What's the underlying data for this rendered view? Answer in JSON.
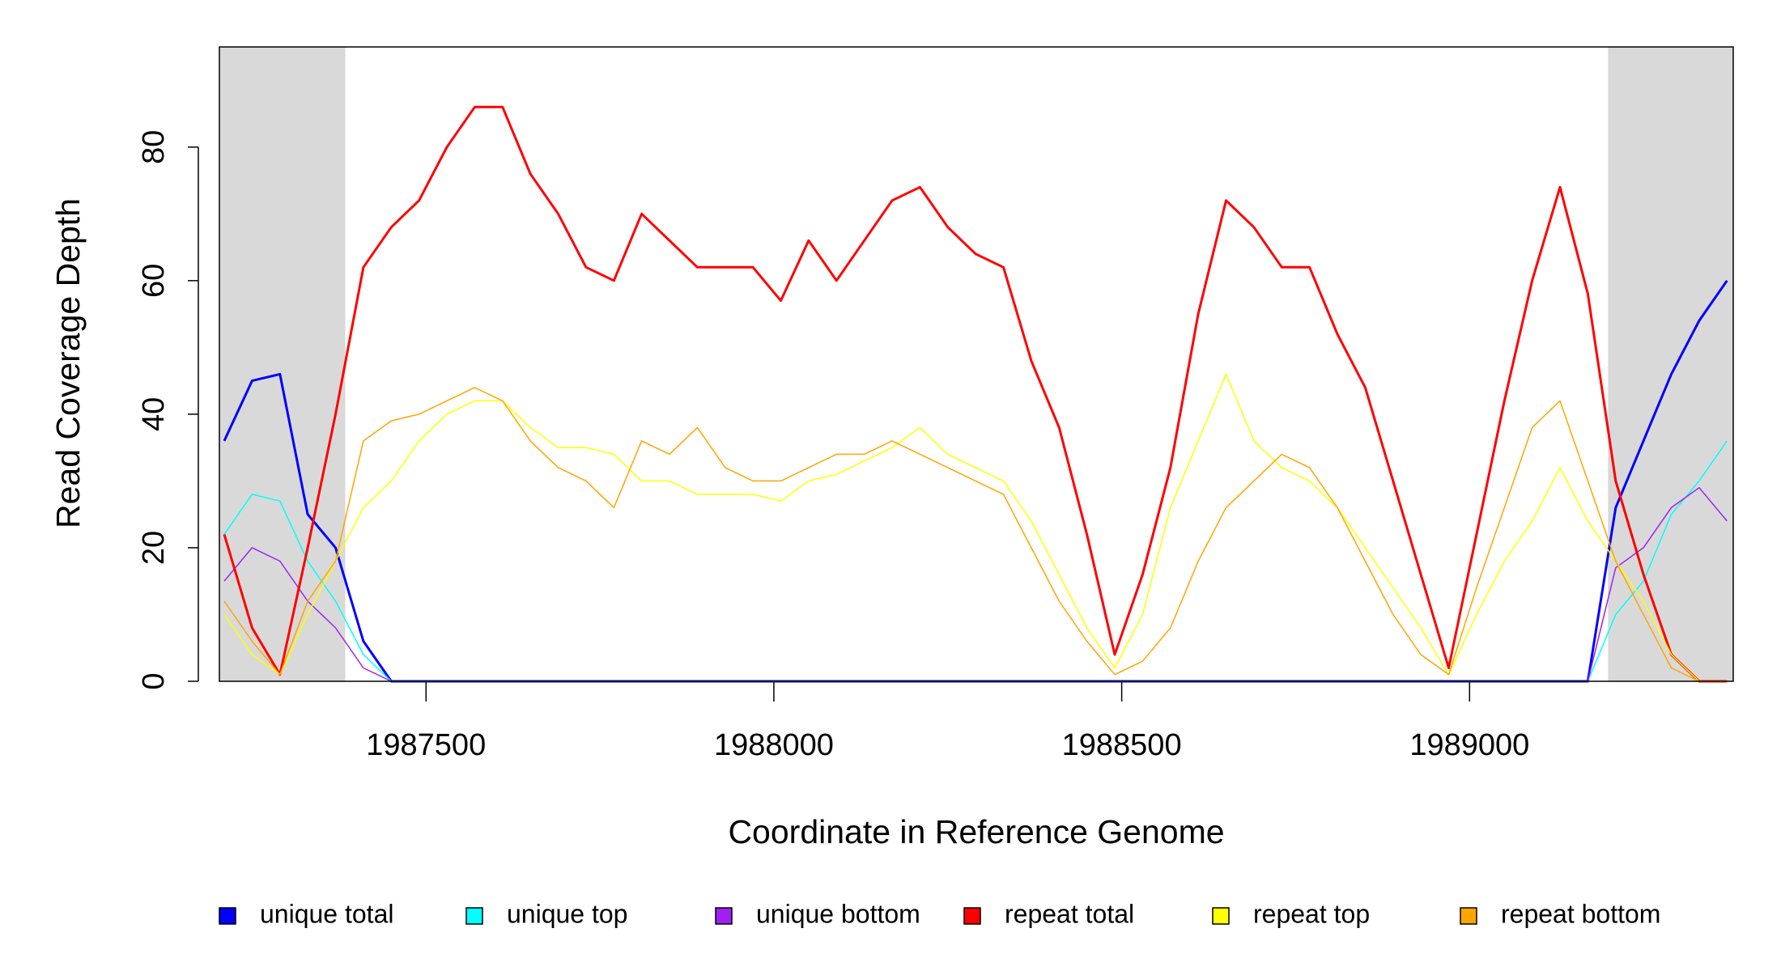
{
  "chart_data": {
    "type": "line",
    "x_label": "Coordinate in Reference Genome",
    "y_label": "Read Coverage Depth",
    "xlim": [
      1987203,
      1989379
    ],
    "ylim": [
      0,
      95
    ],
    "xticks": [
      1987500,
      1988000,
      1988500,
      1989000
    ],
    "yticks": [
      0,
      20,
      40,
      60,
      80
    ],
    "shaded_regions": [
      [
        1987203,
        1987384
      ],
      [
        1989199,
        1989379
      ]
    ],
    "shade_color": "#d9d9d9",
    "legend_position": "bottom",
    "x": [
      1987210,
      1987250,
      1987290,
      1987330,
      1987370,
      1987410,
      1987450,
      1987490,
      1987530,
      1987570,
      1987610,
      1987650,
      1987690,
      1987730,
      1987770,
      1987810,
      1987850,
      1987890,
      1987930,
      1987970,
      1988010,
      1988050,
      1988090,
      1988130,
      1988170,
      1988210,
      1988250,
      1988290,
      1988330,
      1988370,
      1988410,
      1988450,
      1988490,
      1988530,
      1988570,
      1988610,
      1988650,
      1988690,
      1988730,
      1988770,
      1988810,
      1988850,
      1988890,
      1988930,
      1988970,
      1989010,
      1989050,
      1989090,
      1989130,
      1989170,
      1989210,
      1989250,
      1989290,
      1989330,
      1989370
    ],
    "series": [
      {
        "name": "unique total",
        "color": "#0000ff",
        "width": 3,
        "values": [
          36,
          45,
          46,
          25,
          20,
          6,
          0,
          0,
          0,
          0,
          0,
          0,
          0,
          0,
          0,
          0,
          0,
          0,
          0,
          0,
          0,
          0,
          0,
          0,
          0,
          0,
          0,
          0,
          0,
          0,
          0,
          0,
          0,
          0,
          0,
          0,
          0,
          0,
          0,
          0,
          0,
          0,
          0,
          0,
          0,
          0,
          0,
          0,
          0,
          0,
          26,
          36,
          46,
          54,
          60
        ]
      },
      {
        "name": "unique top",
        "color": "#00ffff",
        "width": 1.5,
        "values": [
          22,
          28,
          27,
          18,
          12,
          4,
          0,
          0,
          0,
          0,
          0,
          0,
          0,
          0,
          0,
          0,
          0,
          0,
          0,
          0,
          0,
          0,
          0,
          0,
          0,
          0,
          0,
          0,
          0,
          0,
          0,
          0,
          0,
          0,
          0,
          0,
          0,
          0,
          0,
          0,
          0,
          0,
          0,
          0,
          0,
          0,
          0,
          0,
          0,
          0,
          10,
          15,
          25,
          30,
          36
        ]
      },
      {
        "name": "unique bottom",
        "color": "#a020f0",
        "width": 1.5,
        "values": [
          15,
          20,
          18,
          12,
          8,
          2,
          0,
          0,
          0,
          0,
          0,
          0,
          0,
          0,
          0,
          0,
          0,
          0,
          0,
          0,
          0,
          0,
          0,
          0,
          0,
          0,
          0,
          0,
          0,
          0,
          0,
          0,
          0,
          0,
          0,
          0,
          0,
          0,
          0,
          0,
          0,
          0,
          0,
          0,
          0,
          0,
          0,
          0,
          0,
          0,
          17,
          20,
          26,
          29,
          24
        ]
      },
      {
        "name": "repeat total",
        "color": "#ff0000",
        "width": 3,
        "values": [
          22,
          8,
          1,
          20,
          40,
          62,
          68,
          72,
          80,
          86,
          86,
          76,
          70,
          62,
          60,
          70,
          66,
          62,
          62,
          62,
          57,
          66,
          60,
          66,
          72,
          74,
          68,
          64,
          62,
          48,
          38,
          22,
          4,
          16,
          32,
          55,
          72,
          68,
          62,
          62,
          52,
          44,
          30,
          16,
          2,
          22,
          42,
          60,
          74,
          58,
          30,
          16,
          4,
          0,
          0
        ]
      },
      {
        "name": "repeat top",
        "color": "#ffff00",
        "width": 1.5,
        "values": [
          10,
          4,
          1,
          10,
          18,
          26,
          30,
          36,
          40,
          42,
          42,
          38,
          35,
          35,
          34,
          30,
          30,
          28,
          28,
          28,
          27,
          30,
          31,
          33,
          35,
          38,
          34,
          32,
          30,
          24,
          16,
          8,
          2,
          10,
          26,
          36,
          46,
          36,
          32,
          30,
          26,
          20,
          14,
          8,
          1,
          10,
          18,
          24,
          32,
          24,
          18,
          12,
          4,
          0,
          0
        ]
      },
      {
        "name": "repeat bottom",
        "color": "#ffa500",
        "width": 1.5,
        "values": [
          12,
          6,
          1,
          12,
          18,
          36,
          39,
          40,
          42,
          44,
          42,
          36,
          32,
          30,
          26,
          36,
          34,
          38,
          32,
          30,
          30,
          32,
          34,
          34,
          36,
          34,
          32,
          30,
          28,
          20,
          12,
          6,
          1,
          3,
          8,
          18,
          26,
          30,
          34,
          32,
          26,
          18,
          10,
          4,
          1,
          14,
          26,
          38,
          42,
          30,
          18,
          10,
          2,
          0,
          0
        ]
      }
    ]
  }
}
